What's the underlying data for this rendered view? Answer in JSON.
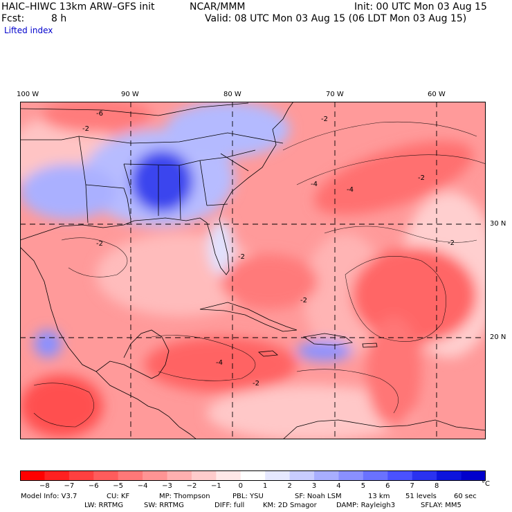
{
  "header": {
    "model_title": "HAIC–HIWC 13km ARW–GFS init",
    "org": "NCAR/MMM",
    "init": "Init: 00 UTC Mon 03 Aug 15",
    "fcst_label": "Fcst:",
    "fcst_value": "8 h",
    "valid": "Valid: 08 UTC Mon 03 Aug 15 (06 LDT Mon 03 Aug 15)",
    "field": "Lifted index"
  },
  "axes": {
    "lon_labels": [
      "100 W",
      "90 W",
      "80 W",
      "70 W",
      "60 W"
    ],
    "lat_labels": [
      "30 N",
      "20 N"
    ]
  },
  "colorbar": {
    "ticks": [
      "−8",
      "−7",
      "−6",
      "−5",
      "−4",
      "−3",
      "−2",
      "−1",
      "0",
      "1",
      "2",
      "3",
      "4",
      "5",
      "6",
      "7",
      "8"
    ],
    "unit": "°C",
    "colors": [
      "#ff0000",
      "#ff2020",
      "#ff4040",
      "#ff5c5c",
      "#ff7878",
      "#ff9494",
      "#ffb0b0",
      "#ffcccc",
      "#ffe8e8",
      "#ffffff",
      "#e6e8ff",
      "#c8ccff",
      "#a8aeff",
      "#8a90ff",
      "#6a72ff",
      "#4a52ff",
      "#2a32f0",
      "#0c14dd",
      "#0000cc"
    ]
  },
  "contour_labels": [
    "-6",
    "-2",
    "-2",
    "-2",
    "-4",
    "-2",
    "-2",
    "-2",
    "-4",
    "-2",
    "-4",
    "-2"
  ],
  "footer": {
    "line1": [
      "Model Info: V3.7",
      "CU: KF",
      "MP: Thompson",
      "PBL: YSU",
      "SF: Noah LSM",
      "13 km",
      "51 levels",
      "60 sec"
    ],
    "line2": [
      "LW: RRTMG",
      "SW: RRTMG",
      "DIFF: full",
      "KM: 2D Smagor",
      "DAMP: Rayleigh3",
      "SFLAY: MM5"
    ]
  }
}
